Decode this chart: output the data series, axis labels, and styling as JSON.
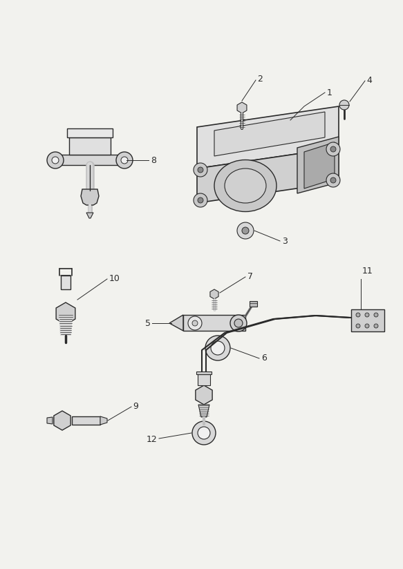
{
  "bg_color": "#f2f2ee",
  "line_color": "#2a2a2a",
  "lw": 1.0,
  "fig_w": 5.83,
  "fig_h": 8.24,
  "dpi": 100
}
